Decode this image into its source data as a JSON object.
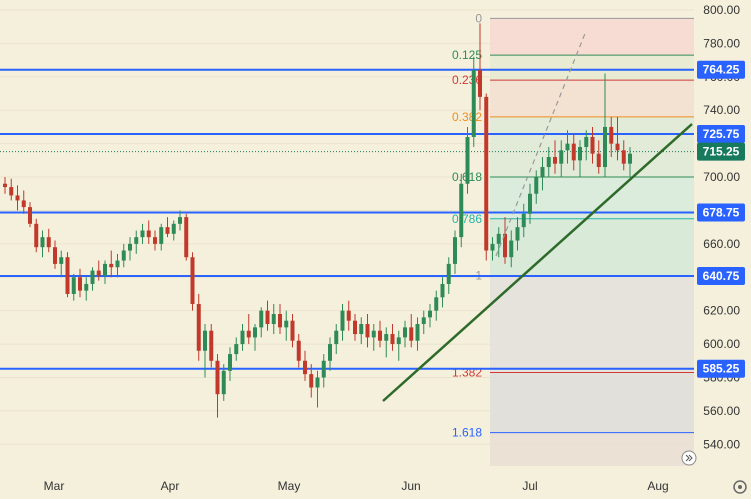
{
  "colors": {
    "background": "#f5f0dc",
    "axis_bg": "#f5f0dc",
    "up": "#2e8b57",
    "down": "#c0392b",
    "level": "#2962ff",
    "trend": "#2e6b2a",
    "current": "#187a5c",
    "fib_green": "#2e8b57",
    "fib_red": "#d23a3a",
    "fib_orange": "#ef8c1f",
    "fib_teal": "#26b5a5",
    "fib_blue": "#2962ff",
    "grid": "#ebe4cc"
  },
  "chart_data": {
    "type": "candlestick",
    "y_axis": {
      "min": 527,
      "max": 806,
      "ticks": [
        540,
        560,
        580,
        600,
        620,
        640,
        660,
        680,
        700,
        720,
        740,
        760,
        780,
        800
      ]
    },
    "x_axis": {
      "labels": [
        "Mar",
        "Apr",
        "May",
        "Jun",
        "Jul",
        "Aug"
      ]
    },
    "horizontal_levels": [
      764.25,
      725.75,
      678.75,
      640.75,
      585.25
    ],
    "level_labels": [
      "764.25",
      "725.75",
      "678.75",
      "640.75",
      "585.25"
    ],
    "current_price": 715.25,
    "current_label": "715.25",
    "fib_levels": [
      {
        "label": "0",
        "value": 795,
        "color": "gray"
      },
      {
        "label": "0.125",
        "value": 773,
        "color": "green"
      },
      {
        "label": "0.236",
        "value": 758,
        "color": "red"
      },
      {
        "label": "0.382",
        "value": 736,
        "color": "orange"
      },
      {
        "label": "0.618",
        "value": 700,
        "color": "green"
      },
      {
        "label": "0.786",
        "value": 675,
        "color": "teal"
      },
      {
        "label": "1",
        "value": 641,
        "color": "gray"
      },
      {
        "label": "1.382",
        "value": 583,
        "color": "red"
      },
      {
        "label": "1.618",
        "value": 547,
        "color": "blue"
      }
    ],
    "candles": [
      [
        696,
        700,
        690,
        694
      ],
      [
        694,
        699,
        686,
        689
      ],
      [
        689,
        695,
        680,
        686
      ],
      [
        686,
        692,
        678,
        682
      ],
      [
        682,
        685,
        670,
        672
      ],
      [
        672,
        675,
        655,
        658
      ],
      [
        658,
        668,
        652,
        664
      ],
      [
        664,
        669,
        655,
        658
      ],
      [
        658,
        662,
        645,
        648
      ],
      [
        648,
        656,
        640,
        652
      ],
      [
        652,
        655,
        628,
        630
      ],
      [
        630,
        642,
        626,
        640
      ],
      [
        640,
        645,
        628,
        632
      ],
      [
        632,
        640,
        626,
        636
      ],
      [
        636,
        646,
        632,
        644
      ],
      [
        644,
        650,
        638,
        641
      ],
      [
        641,
        650,
        636,
        648
      ],
      [
        648,
        656,
        640,
        646
      ],
      [
        646,
        654,
        640,
        650
      ],
      [
        650,
        660,
        646,
        656
      ],
      [
        656,
        664,
        650,
        660
      ],
      [
        660,
        668,
        654,
        664
      ],
      [
        664,
        672,
        660,
        668
      ],
      [
        668,
        674,
        660,
        664
      ],
      [
        664,
        668,
        656,
        660
      ],
      [
        660,
        672,
        656,
        670
      ],
      [
        670,
        676,
        664,
        666
      ],
      [
        666,
        674,
        662,
        672
      ],
      [
        672,
        680,
        668,
        676
      ],
      [
        676,
        678,
        650,
        652
      ],
      [
        652,
        655,
        620,
        624
      ],
      [
        624,
        630,
        590,
        596
      ],
      [
        596,
        612,
        580,
        608
      ],
      [
        608,
        612,
        586,
        590
      ],
      [
        590,
        594,
        556,
        570
      ],
      [
        570,
        588,
        566,
        584
      ],
      [
        584,
        598,
        578,
        594
      ],
      [
        594,
        604,
        590,
        600
      ],
      [
        600,
        612,
        596,
        608
      ],
      [
        608,
        618,
        600,
        604
      ],
      [
        604,
        612,
        596,
        610
      ],
      [
        610,
        622,
        604,
        620
      ],
      [
        620,
        626,
        608,
        612
      ],
      [
        612,
        624,
        606,
        618
      ],
      [
        618,
        624,
        606,
        610
      ],
      [
        610,
        620,
        602,
        614
      ],
      [
        614,
        618,
        598,
        602
      ],
      [
        602,
        606,
        586,
        590
      ],
      [
        590,
        596,
        578,
        582
      ],
      [
        582,
        588,
        568,
        574
      ],
      [
        574,
        584,
        562,
        580
      ],
      [
        580,
        594,
        574,
        590
      ],
      [
        590,
        604,
        584,
        600
      ],
      [
        600,
        612,
        594,
        608
      ],
      [
        608,
        624,
        602,
        620
      ],
      [
        620,
        626,
        608,
        614
      ],
      [
        614,
        618,
        602,
        606
      ],
      [
        606,
        616,
        600,
        612
      ],
      [
        612,
        618,
        598,
        604
      ],
      [
        604,
        612,
        596,
        608
      ],
      [
        608,
        614,
        598,
        602
      ],
      [
        602,
        610,
        592,
        606
      ],
      [
        606,
        612,
        596,
        600
      ],
      [
        600,
        608,
        590,
        604
      ],
      [
        604,
        614,
        598,
        610
      ],
      [
        610,
        618,
        598,
        602
      ],
      [
        602,
        616,
        596,
        612
      ],
      [
        612,
        620,
        606,
        616
      ],
      [
        616,
        624,
        610,
        620
      ],
      [
        620,
        632,
        614,
        628
      ],
      [
        628,
        640,
        622,
        636
      ],
      [
        636,
        652,
        630,
        648
      ],
      [
        648,
        668,
        642,
        664
      ],
      [
        664,
        702,
        658,
        696
      ],
      [
        696,
        730,
        690,
        724
      ],
      [
        724,
        772,
        718,
        764
      ],
      [
        764,
        792,
        740,
        748
      ],
      [
        748,
        750,
        650,
        656
      ],
      [
        656,
        664,
        650,
        660
      ],
      [
        660,
        670,
        652,
        666
      ],
      [
        666,
        676,
        648,
        652
      ],
      [
        652,
        668,
        646,
        662
      ],
      [
        662,
        676,
        656,
        670
      ],
      [
        670,
        684,
        664,
        678
      ],
      [
        678,
        696,
        672,
        690
      ],
      [
        690,
        704,
        684,
        700
      ],
      [
        700,
        712,
        692,
        706
      ],
      [
        706,
        718,
        700,
        712
      ],
      [
        712,
        722,
        702,
        708
      ],
      [
        708,
        722,
        700,
        716
      ],
      [
        716,
        728,
        708,
        720
      ],
      [
        720,
        726,
        704,
        710
      ],
      [
        710,
        722,
        700,
        718
      ],
      [
        718,
        728,
        710,
        724
      ],
      [
        724,
        730,
        708,
        714
      ],
      [
        714,
        722,
        702,
        706
      ],
      [
        706,
        762,
        700,
        730
      ],
      [
        730,
        736,
        712,
        720
      ],
      [
        720,
        736,
        710,
        716
      ],
      [
        716,
        722,
        704,
        708
      ],
      [
        708,
        718,
        700,
        714
      ]
    ]
  }
}
